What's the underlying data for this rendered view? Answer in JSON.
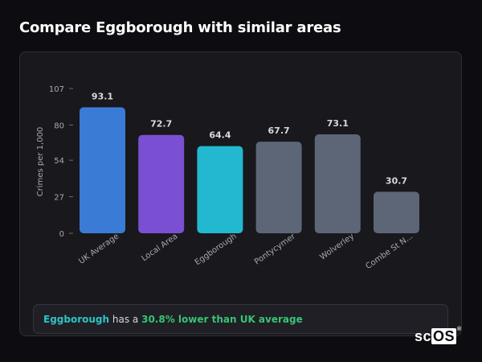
{
  "page": {
    "title": "Compare Eggborough with similar areas"
  },
  "callout": {
    "area_name": "Eggborough",
    "middle": "has a",
    "stat": "30.8% lower than UK average"
  },
  "logo": {
    "text_prefix": "sc",
    "text_box": "OS",
    "registered": "®"
  },
  "colors": {
    "uk_average": "#3a7bd5",
    "local_area": "#7b4fd1",
    "eggborough": "#22b8cf",
    "similar": "#5d6677",
    "background": "#0d0d11",
    "card": "#18181d"
  },
  "chart_data": {
    "type": "bar",
    "ylabel": "Crimes per 1,000",
    "ylim": [
      0,
      107
    ],
    "yticks": [
      "107",
      "80",
      "54",
      "27",
      "0"
    ],
    "ytick_values": [
      107,
      80,
      54,
      27,
      0
    ],
    "categories": [
      "UK Average",
      "Local Area",
      "Eggborough",
      "Pontycymer",
      "Wolverley",
      "Combe St N..."
    ],
    "values": [
      93.1,
      72.7,
      64.4,
      67.7,
      73.1,
      30.7
    ],
    "value_labels": [
      "93.1",
      "72.7",
      "64.4",
      "67.7",
      "73.1",
      "30.7"
    ],
    "bar_colors": [
      "#3a7bd5",
      "#7b4fd1",
      "#22b8cf",
      "#5d6677",
      "#5d6677",
      "#5d6677"
    ],
    "grid": false
  }
}
